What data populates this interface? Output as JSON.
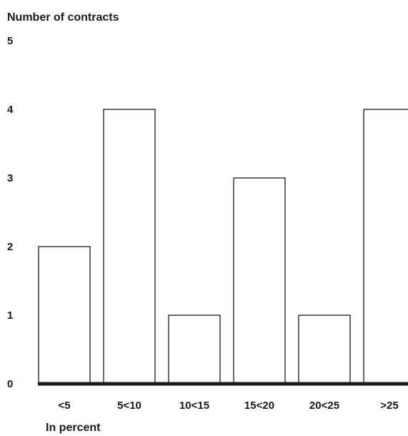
{
  "chart_data": {
    "type": "bar",
    "ylabel": "Number of contracts",
    "xlabel": "In percent",
    "categories": [
      "<5",
      "5<10",
      "10<15",
      "15<20",
      "20<25",
      ">25"
    ],
    "values": [
      2,
      4,
      1,
      3,
      1,
      4
    ],
    "yticks": [
      "0",
      "1",
      "2",
      "3",
      "4",
      "5"
    ],
    "ylim": [
      0,
      5
    ],
    "grid": false,
    "legend": "none",
    "colors": {
      "bar_fill": "#ffffff",
      "bar_stroke": "#1a1a1a",
      "text": "#1a1a1a"
    }
  }
}
